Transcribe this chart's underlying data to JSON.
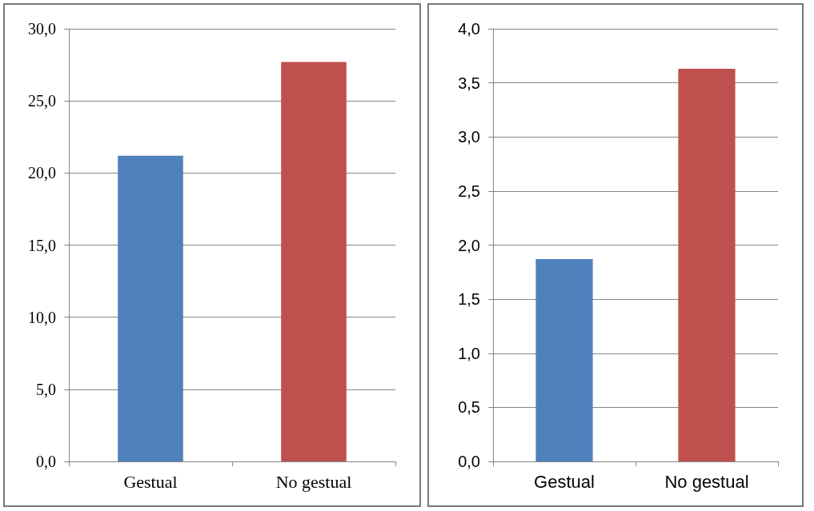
{
  "chart_data": [
    {
      "type": "bar",
      "categories": [
        "Gestual",
        "No gestual"
      ],
      "colors": [
        "#4f81bd",
        "#c0504d"
      ],
      "values": [
        21.2,
        27.7
      ],
      "ylim": [
        0,
        30
      ],
      "yticks": [
        {
          "value": 0,
          "label": "0,0"
        },
        {
          "value": 5,
          "label": "5,0"
        },
        {
          "value": 10,
          "label": "10,0"
        },
        {
          "value": 15,
          "label": "15,0"
        },
        {
          "value": 20,
          "label": "20,0"
        },
        {
          "value": 25,
          "label": "25,0"
        },
        {
          "value": 30,
          "label": "30,0"
        }
      ],
      "grid": "y"
    },
    {
      "type": "bar",
      "categories": [
        "Gestual",
        "No gestual"
      ],
      "colors": [
        "#4f81bd",
        "#c0504d"
      ],
      "values": [
        1.87,
        3.63
      ],
      "ylim": [
        0,
        4
      ],
      "yticks": [
        {
          "value": 0,
          "label": "0,0"
        },
        {
          "value": 0.5,
          "label": "0,5"
        },
        {
          "value": 1,
          "label": "1,0"
        },
        {
          "value": 1.5,
          "label": "1,5"
        },
        {
          "value": 2,
          "label": "2,0"
        },
        {
          "value": 2.5,
          "label": "2,5"
        },
        {
          "value": 3,
          "label": "3,0"
        },
        {
          "value": 3.5,
          "label": "3,5"
        },
        {
          "value": 4,
          "label": "4,0"
        }
      ],
      "grid": "y"
    }
  ]
}
